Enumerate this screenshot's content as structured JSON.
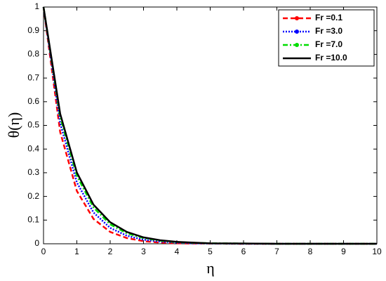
{
  "chart_data": {
    "type": "line",
    "xlabel": "η",
    "ylabel": "θ(η)",
    "x": [
      0,
      0.5,
      1,
      1.5,
      2,
      2.5,
      3,
      3.5,
      4,
      4.5,
      5,
      6,
      7,
      8,
      9,
      10
    ],
    "series": [
      {
        "name": "Fr =0.1",
        "color": "#ff0000",
        "dash": "7,4",
        "values": [
          1,
          0.472,
          0.223,
          0.105,
          0.05,
          0.024,
          0.011,
          0.005,
          0.002,
          0.001,
          0.001,
          0,
          0,
          0,
          0,
          0
        ]
      },
      {
        "name": "Fr =3.0",
        "color": "#0000ff",
        "dash": "2,2",
        "values": [
          1,
          0.509,
          0.259,
          0.132,
          0.067,
          0.034,
          0.017,
          0.009,
          0.005,
          0.002,
          0.001,
          0,
          0,
          0,
          0,
          0
        ]
      },
      {
        "name": "Fr =7.0",
        "color": "#00dd00",
        "dash": "7,3,2,3",
        "values": [
          1,
          0.535,
          0.287,
          0.153,
          0.082,
          0.044,
          0.024,
          0.013,
          0.007,
          0.004,
          0.002,
          0.001,
          0,
          0,
          0,
          0
        ]
      },
      {
        "name": "Fr =10.0",
        "color": "#000000",
        "dash": "none",
        "values": [
          1,
          0.549,
          0.301,
          0.165,
          0.091,
          0.05,
          0.027,
          0.015,
          0.008,
          0.005,
          0.002,
          0.001,
          0,
          0,
          0,
          0
        ]
      }
    ],
    "xlim": [
      0,
      10
    ],
    "xticks": [
      0,
      1,
      2,
      3,
      4,
      5,
      6,
      7,
      8,
      9,
      10
    ],
    "ylim": [
      0,
      1
    ],
    "yticks": [
      0,
      0.1,
      0.2,
      0.3,
      0.4,
      0.5,
      0.6,
      0.7,
      0.8,
      0.9,
      1
    ],
    "legend": "upper-right",
    "grid": false
  }
}
